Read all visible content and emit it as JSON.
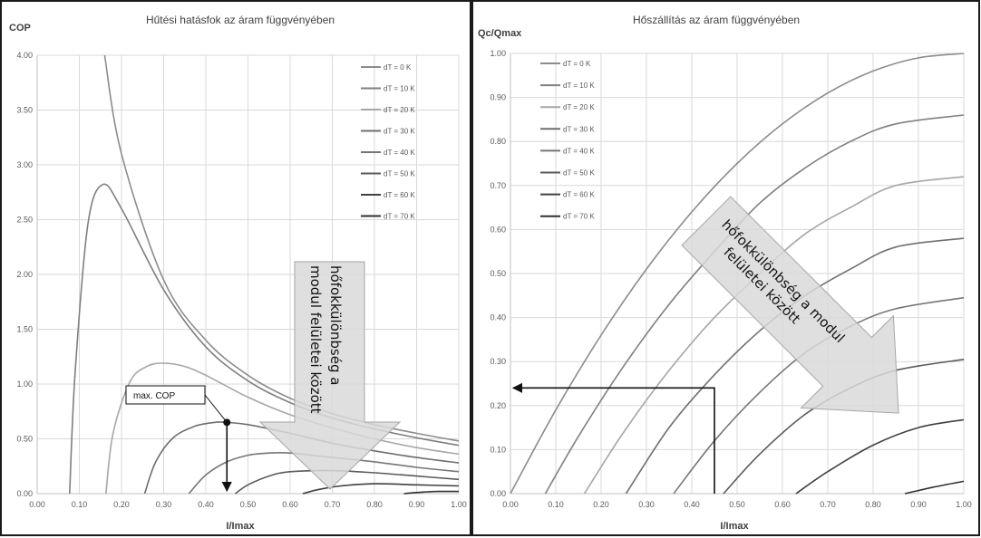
{
  "chart_data": [
    {
      "type": "line",
      "title": "Hűtési hatásfok az áram függvényében",
      "ylabel": "COP",
      "xlabel": "I/Imax",
      "xlim": [
        0,
        1
      ],
      "ylim": [
        0,
        4
      ],
      "x_ticks": [
        "0.00",
        "0.10",
        "0.20",
        "0.30",
        "0.40",
        "0.50",
        "0.60",
        "0.70",
        "0.80",
        "0.90",
        "1.00"
      ],
      "y_ticks": [
        "0.00",
        "0.50",
        "1.00",
        "1.50",
        "2.00",
        "2.50",
        "3.00",
        "3.50",
        "4.00"
      ],
      "grid": true,
      "legend_position": "top-right",
      "series": [
        {
          "name": "dT = 0 K",
          "color": "#8c8c8c",
          "points": [
            [
              0.16,
              4.0
            ],
            [
              0.2,
              3.1
            ],
            [
              0.3,
              1.95
            ],
            [
              0.4,
              1.4
            ],
            [
              0.5,
              1.08
            ],
            [
              0.6,
              0.87
            ],
            [
              0.7,
              0.73
            ],
            [
              0.8,
              0.63
            ],
            [
              0.9,
              0.55
            ],
            [
              1.0,
              0.48
            ]
          ]
        },
        {
          "name": "dT = 10 K",
          "color": "#7f7f7f",
          "points": [
            [
              0.077,
              0.0
            ],
            [
              0.09,
              1.1
            ],
            [
              0.12,
              2.45
            ],
            [
              0.155,
              2.82
            ],
            [
              0.2,
              2.6
            ],
            [
              0.3,
              1.86
            ],
            [
              0.4,
              1.34
            ],
            [
              0.5,
              1.03
            ],
            [
              0.6,
              0.83
            ],
            [
              0.7,
              0.69
            ],
            [
              0.8,
              0.59
            ],
            [
              0.9,
              0.51
            ],
            [
              1.0,
              0.44
            ]
          ]
        },
        {
          "name": "dT = 20 K",
          "color": "#a6a6a6",
          "points": [
            [
              0.163,
              0.0
            ],
            [
              0.18,
              0.55
            ],
            [
              0.22,
              1.02
            ],
            [
              0.26,
              1.16
            ],
            [
              0.3,
              1.19
            ],
            [
              0.35,
              1.16
            ],
            [
              0.4,
              1.08
            ],
            [
              0.5,
              0.88
            ],
            [
              0.6,
              0.72
            ],
            [
              0.7,
              0.6
            ],
            [
              0.8,
              0.5
            ],
            [
              0.9,
              0.42
            ],
            [
              1.0,
              0.36
            ]
          ]
        },
        {
          "name": "dT = 30 K",
          "color": "#6f6f6f",
          "points": [
            [
              0.255,
              0.0
            ],
            [
              0.28,
              0.28
            ],
            [
              0.32,
              0.5
            ],
            [
              0.37,
              0.61
            ],
            [
              0.42,
              0.65
            ],
            [
              0.45,
              0.65
            ],
            [
              0.5,
              0.63
            ],
            [
              0.6,
              0.55
            ],
            [
              0.7,
              0.46
            ],
            [
              0.8,
              0.39
            ],
            [
              0.9,
              0.33
            ],
            [
              1.0,
              0.28
            ]
          ]
        },
        {
          "name": "dT = 40 K",
          "color": "#767676",
          "points": [
            [
              0.36,
              0.0
            ],
            [
              0.4,
              0.17
            ],
            [
              0.45,
              0.29
            ],
            [
              0.5,
              0.35
            ],
            [
              0.55,
              0.37
            ],
            [
              0.6,
              0.37
            ],
            [
              0.7,
              0.33
            ],
            [
              0.8,
              0.29
            ],
            [
              0.9,
              0.24
            ],
            [
              1.0,
              0.2
            ]
          ]
        },
        {
          "name": "dT = 50 K",
          "color": "#5a5a5a",
          "points": [
            [
              0.47,
              0.0
            ],
            [
              0.5,
              0.08
            ],
            [
              0.55,
              0.16
            ],
            [
              0.6,
              0.2
            ],
            [
              0.7,
              0.21
            ],
            [
              0.8,
              0.19
            ],
            [
              0.9,
              0.16
            ],
            [
              1.0,
              0.13
            ]
          ]
        },
        {
          "name": "dT = 60 K",
          "color": "#404040",
          "points": [
            [
              0.63,
              0.0
            ],
            [
              0.67,
              0.04
            ],
            [
              0.72,
              0.07
            ],
            [
              0.8,
              0.09
            ],
            [
              0.9,
              0.08
            ],
            [
              1.0,
              0.07
            ]
          ]
        },
        {
          "name": "dT = 70 K",
          "color": "#303030",
          "points": [
            [
              0.87,
              0.0
            ],
            [
              0.9,
              0.01
            ],
            [
              0.95,
              0.02
            ],
            [
              1.0,
              0.02
            ]
          ]
        }
      ],
      "annotations": {
        "callout": "max. COP",
        "arrow_text_1": "hőfokkülönbség a",
        "arrow_text_2": "modul felületei között",
        "max_point": [
          0.45,
          0.65
        ]
      }
    },
    {
      "type": "line",
      "title": "Hőszállítás az áram függvényében",
      "ylabel": "Qc/Qmax",
      "xlabel": "I/Imax",
      "xlim": [
        0,
        1
      ],
      "ylim": [
        0,
        1
      ],
      "x_ticks": [
        "0.00",
        "0.10",
        "0.20",
        "0.30",
        "0.40",
        "0.50",
        "0.60",
        "0.70",
        "0.80",
        "0.90",
        "1.00"
      ],
      "y_ticks": [
        "0.00",
        "0.10",
        "0.20",
        "0.30",
        "0.40",
        "0.50",
        "0.60",
        "0.70",
        "0.80",
        "0.90",
        "1.00"
      ],
      "grid": true,
      "legend_position": "top-left",
      "series": [
        {
          "name": "dT = 0 K",
          "color": "#8c8c8c",
          "points": [
            [
              0.0,
              0.0
            ],
            [
              0.1,
              0.19
            ],
            [
              0.2,
              0.36
            ],
            [
              0.3,
              0.51
            ],
            [
              0.4,
              0.64
            ],
            [
              0.5,
              0.75
            ],
            [
              0.6,
              0.84
            ],
            [
              0.7,
              0.91
            ],
            [
              0.8,
              0.96
            ],
            [
              0.9,
              0.99
            ],
            [
              1.0,
              1.0
            ]
          ]
        },
        {
          "name": "dT = 10 K",
          "color": "#7f7f7f",
          "points": [
            [
              0.077,
              0.0
            ],
            [
              0.15,
              0.13
            ],
            [
              0.25,
              0.29
            ],
            [
              0.35,
              0.43
            ],
            [
              0.45,
              0.55
            ],
            [
              0.55,
              0.66
            ],
            [
              0.65,
              0.74
            ],
            [
              0.75,
              0.8
            ],
            [
              0.85,
              0.84
            ],
            [
              1.0,
              0.86
            ]
          ]
        },
        {
          "name": "dT = 20 K",
          "color": "#a6a6a6",
          "points": [
            [
              0.163,
              0.0
            ],
            [
              0.25,
              0.14
            ],
            [
              0.35,
              0.28
            ],
            [
              0.45,
              0.4
            ],
            [
              0.55,
              0.5
            ],
            [
              0.65,
              0.59
            ],
            [
              0.75,
              0.65
            ],
            [
              0.85,
              0.7
            ],
            [
              1.0,
              0.72
            ]
          ]
        },
        {
          "name": "dT = 30 K",
          "color": "#6f6f6f",
          "points": [
            [
              0.255,
              0.0
            ],
            [
              0.35,
              0.15
            ],
            [
              0.45,
              0.27
            ],
            [
              0.55,
              0.37
            ],
            [
              0.65,
              0.45
            ],
            [
              0.75,
              0.51
            ],
            [
              0.85,
              0.56
            ],
            [
              1.0,
              0.58
            ]
          ]
        },
        {
          "name": "dT = 40 K",
          "color": "#767676",
          "points": [
            [
              0.36,
              0.0
            ],
            [
              0.45,
              0.12
            ],
            [
              0.55,
              0.23
            ],
            [
              0.65,
              0.32
            ],
            [
              0.75,
              0.38
            ],
            [
              0.85,
              0.42
            ],
            [
              1.0,
              0.445
            ]
          ]
        },
        {
          "name": "dT = 50 K",
          "color": "#5a5a5a",
          "points": [
            [
              0.47,
              0.0
            ],
            [
              0.55,
              0.09
            ],
            [
              0.65,
              0.18
            ],
            [
              0.75,
              0.24
            ],
            [
              0.85,
              0.28
            ],
            [
              1.0,
              0.305
            ]
          ]
        },
        {
          "name": "dT = 60 K",
          "color": "#404040",
          "points": [
            [
              0.63,
              0.0
            ],
            [
              0.7,
              0.05
            ],
            [
              0.8,
              0.11
            ],
            [
              0.9,
              0.15
            ],
            [
              1.0,
              0.168
            ]
          ]
        },
        {
          "name": "dT = 70 K",
          "color": "#303030",
          "points": [
            [
              0.87,
              0.0
            ],
            [
              0.93,
              0.014
            ],
            [
              1.0,
              0.028
            ]
          ]
        }
      ],
      "annotations": {
        "arrow_text_1": "hőfokkülönbség a modul",
        "arrow_text_2": "felületei között",
        "readout_point": [
          0.45,
          0.24
        ]
      }
    }
  ]
}
